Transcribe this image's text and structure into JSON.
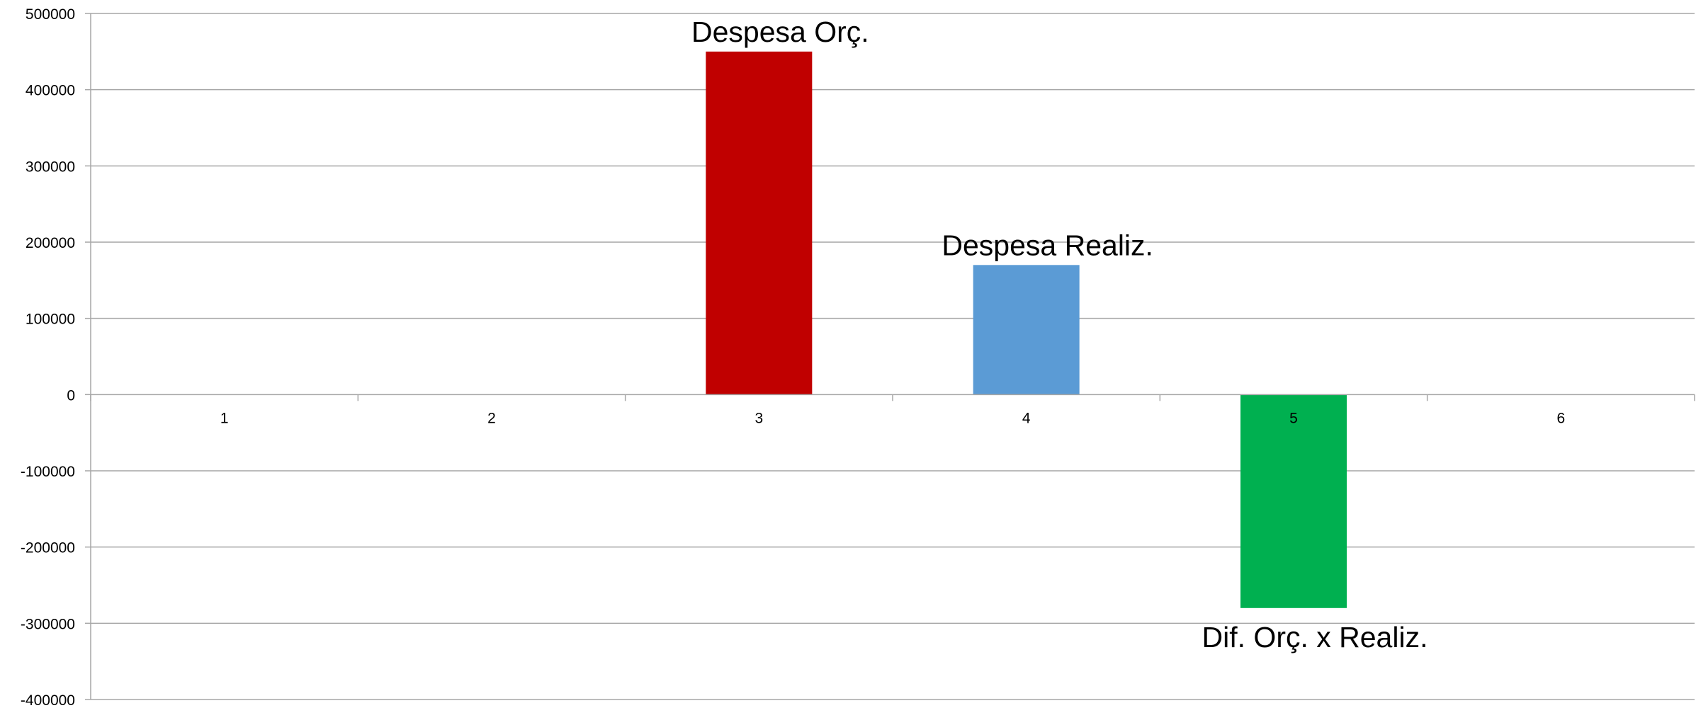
{
  "chart_data": {
    "type": "bar",
    "title": "",
    "xlabel": "",
    "ylabel": "",
    "categories": [
      "1",
      "2",
      "3",
      "4",
      "5",
      "6"
    ],
    "values": [
      0,
      0,
      450000,
      170000,
      -280000,
      0
    ],
    "bar_colors": [
      "#c00000",
      "#c00000",
      "#c00000",
      "#5b9bd5",
      "#00b050",
      "#00b050"
    ],
    "data_labels": [
      "",
      "",
      "Despesa Orç.",
      "Despesa Realiz.",
      "Dif. Orç. x Realiz.",
      ""
    ],
    "ylim": [
      -400000,
      500000
    ],
    "yticks": [
      500000,
      400000,
      300000,
      200000,
      100000,
      0,
      -100000,
      -200000,
      -300000,
      -400000
    ],
    "ytick_labels": [
      "500000",
      "400000",
      "300000",
      "200000",
      "100000",
      "0",
      "-100000",
      "-200000",
      "-300000",
      "-400000"
    ],
    "grid": true,
    "legend": "none",
    "colors": {
      "grid": "#a6a6a6",
      "axis": "#a6a6a6",
      "text": "#000000"
    }
  }
}
